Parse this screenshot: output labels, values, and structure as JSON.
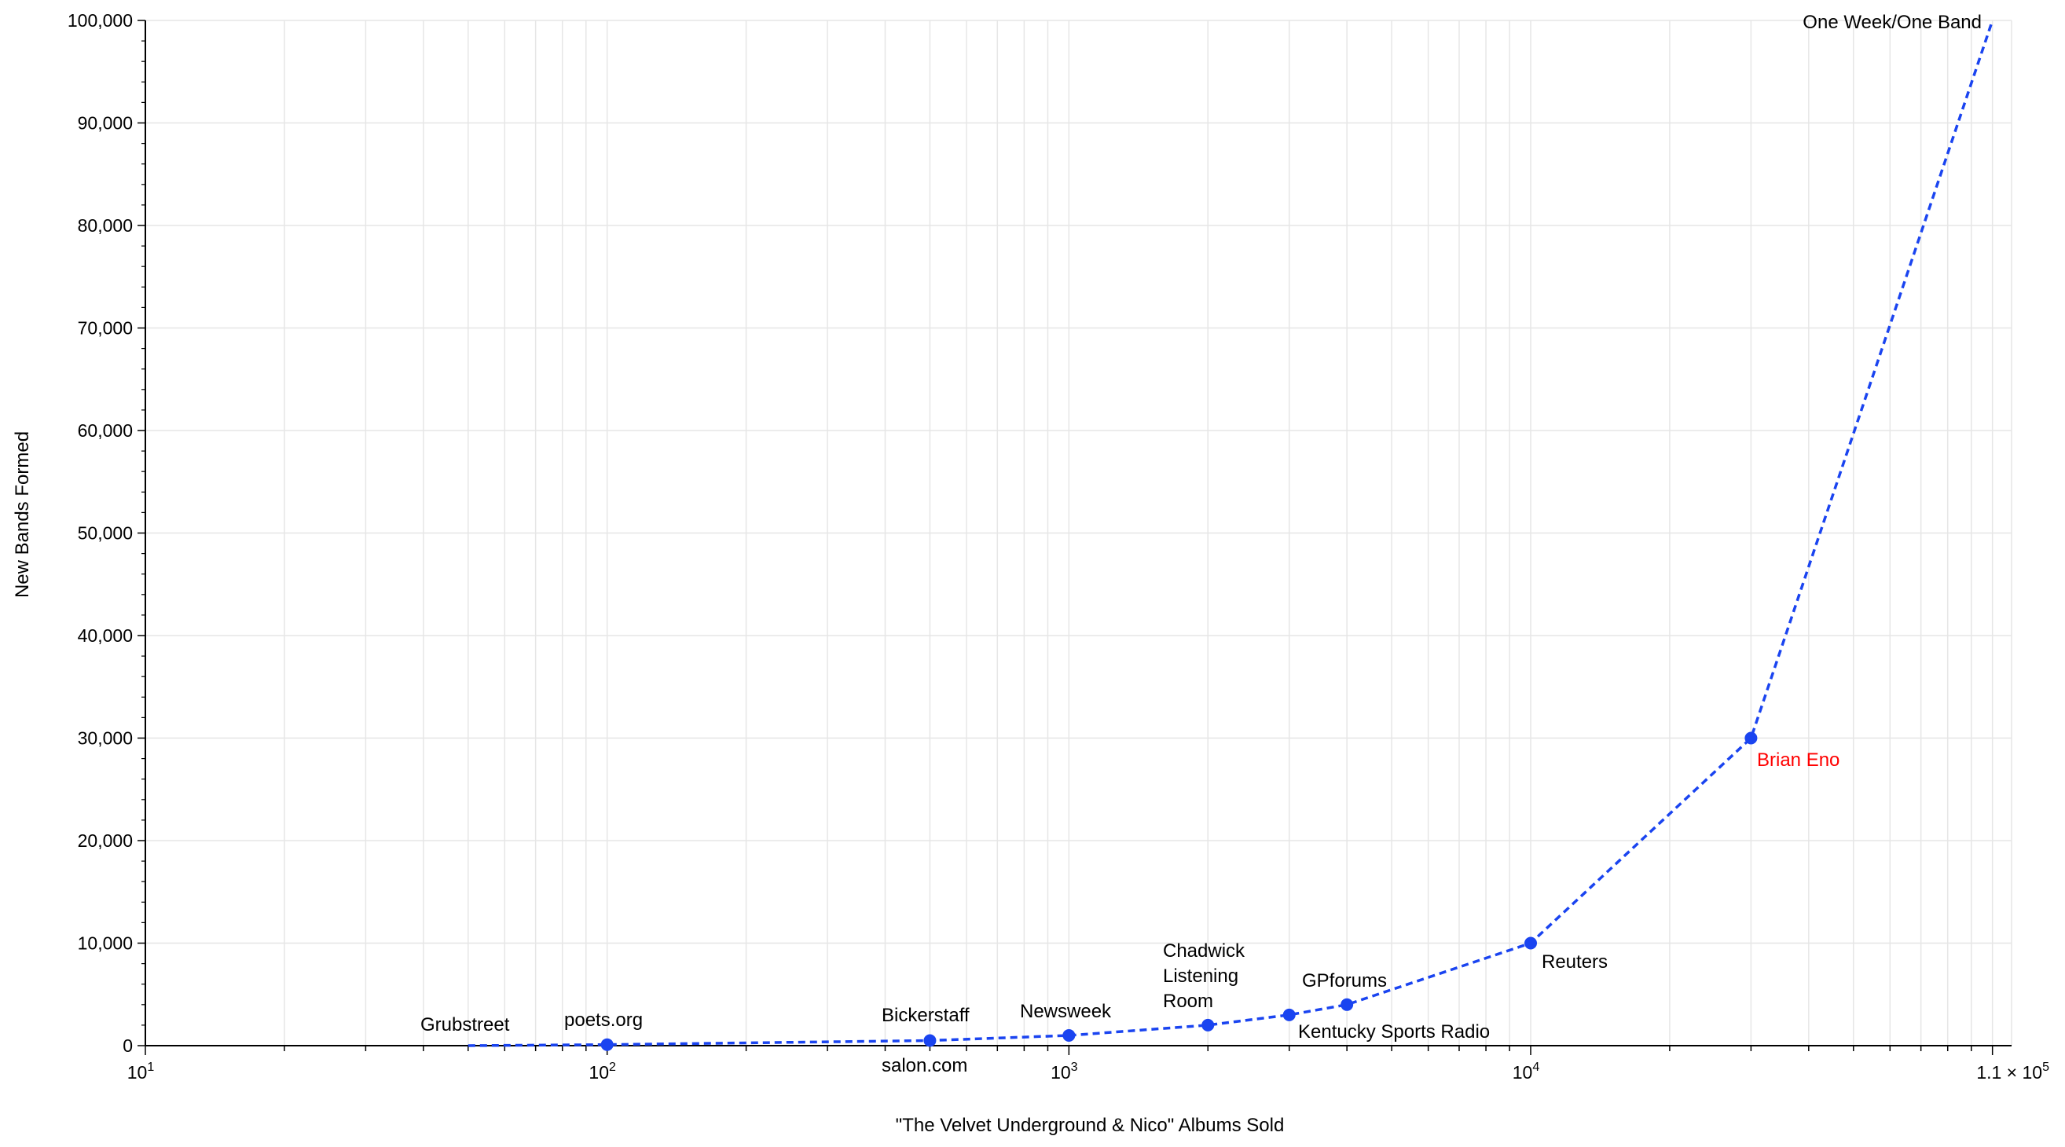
{
  "chart_data": {
    "type": "line",
    "title": "",
    "xlabel": "\"The Velvet Underground & Nico\" Albums Sold",
    "ylabel": "New Bands Formed",
    "xscale": "log",
    "xlim": [
      10,
      110000
    ],
    "ylim": [
      0,
      100000
    ],
    "grid": true,
    "line_style": "dashed",
    "colors": {
      "series": "#1a44f0",
      "highlight": "#ff0000",
      "grid": "#e6e6e6",
      "axis": "#000000"
    },
    "x_ticks": [
      {
        "value": 10,
        "base": "10",
        "exp": "1"
      },
      {
        "value": 100,
        "base": "10",
        "exp": "2"
      },
      {
        "value": 1000,
        "base": "10",
        "exp": "3"
      },
      {
        "value": 10000,
        "base": "10",
        "exp": "4"
      },
      {
        "value": 110000,
        "text": "1.1 × 10",
        "exp": "5"
      }
    ],
    "y_ticks": [
      {
        "value": 0,
        "label": "0"
      },
      {
        "value": 10000,
        "label": "10,000"
      },
      {
        "value": 20000,
        "label": "20,000"
      },
      {
        "value": 30000,
        "label": "30,000"
      },
      {
        "value": 40000,
        "label": "40,000"
      },
      {
        "value": 50000,
        "label": "50,000"
      },
      {
        "value": 60000,
        "label": "60,000"
      },
      {
        "value": 70000,
        "label": "70,000"
      },
      {
        "value": 80000,
        "label": "80,000"
      },
      {
        "value": 90000,
        "label": "90,000"
      },
      {
        "value": 100000,
        "label": "100,000"
      }
    ],
    "series": [
      {
        "points": [
          {
            "x": 50,
            "y": 0,
            "label": "Grubstreet",
            "marker": false
          },
          {
            "x": 100,
            "y": 100,
            "label": "poets.org",
            "marker": true
          },
          {
            "x": 500,
            "y": 500,
            "label": "Bickerstaff",
            "marker": true
          },
          {
            "x": 1000,
            "y": 1000,
            "label": "Newsweek",
            "marker": true
          },
          {
            "x": 2000,
            "y": 2000,
            "label": "Chadwick Listening Room",
            "marker": true
          },
          {
            "x": 3000,
            "y": 3000,
            "label": "Kentucky Sports Radio",
            "marker": true
          },
          {
            "x": 4000,
            "y": 4000,
            "label": "GPforums",
            "marker": true
          },
          {
            "x": 10000,
            "y": 10000,
            "label": "Reuters",
            "marker": true
          },
          {
            "x": 30000,
            "y": 30000,
            "label": "Brian Eno",
            "marker": true,
            "highlight": true
          },
          {
            "x": 100000,
            "y": 100000,
            "label": "One Week/One Band",
            "marker": false
          }
        ]
      }
    ],
    "annotations": [
      {
        "key": "grubstreet",
        "lines": [
          "Grubstreet"
        ]
      },
      {
        "key": "poets",
        "lines": [
          "poets.org"
        ]
      },
      {
        "key": "bickerstaff",
        "lines": [
          "Bickerstaff"
        ]
      },
      {
        "key": "salon",
        "lines": [
          "salon.com"
        ]
      },
      {
        "key": "newsweek",
        "lines": [
          "Newsweek"
        ]
      },
      {
        "key": "chadwick",
        "lines": [
          "Chadwick",
          "Listening",
          "Room"
        ]
      },
      {
        "key": "gpforums",
        "lines": [
          "GPforums"
        ]
      },
      {
        "key": "kentucky",
        "lines": [
          "Kentucky Sports Radio"
        ]
      },
      {
        "key": "reuters",
        "lines": [
          "Reuters"
        ]
      },
      {
        "key": "eno",
        "lines": [
          "Brian Eno"
        ],
        "highlight": true
      },
      {
        "key": "oneweek",
        "lines": [
          "One Week/One Band"
        ]
      }
    ]
  }
}
